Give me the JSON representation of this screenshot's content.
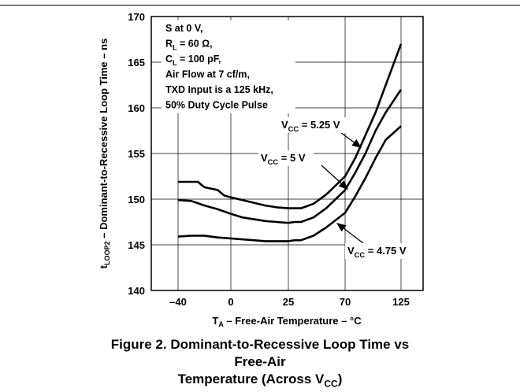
{
  "caption": {
    "line1": "Figure 2. Dominant-to-Recessive Loop Time vs Free-Air",
    "line2_pre": "Temperature (Across V",
    "line2_sub": "CC",
    "line2_post": ")"
  },
  "chart_data": {
    "type": "line",
    "xlabel": {
      "pre": "T",
      "sub": "A",
      "post": " – Free-Air Temperature – °C"
    },
    "ylabel": {
      "pre": "t",
      "sub": "LOOP2",
      "post": " – Dominant-to-Recessive Loop Time – ns"
    },
    "x_ticks": [
      -40,
      0,
      25,
      70,
      125
    ],
    "y_ticks": [
      140,
      145,
      150,
      155,
      160,
      165,
      170
    ],
    "ylim": [
      140,
      170
    ],
    "grid": true,
    "conditions": [
      {
        "pre": "S at 0 V,"
      },
      {
        "pre": "R",
        "sub": "L",
        "post": " = 60 Ω,"
      },
      {
        "pre": "C",
        "sub": "L",
        "post": " = 100 pF,"
      },
      {
        "pre": "Air Flow at 7 cf/m,"
      },
      {
        "pre": "TXD Input is a 125 kHz,"
      },
      {
        "pre": "50% Duty Cycle Pulse"
      }
    ],
    "series": [
      {
        "name": "V_CC = 5.25 V",
        "label_pre": "V",
        "label_sub": "CC",
        "label_post": " = 5.25 V",
        "x": [
          -40,
          -25,
          -20,
          -10,
          -5,
          0,
          10,
          15,
          20,
          25,
          30,
          35,
          45,
          55,
          70,
          80,
          90,
          100,
          110,
          125
        ],
        "y": [
          151.9,
          151.9,
          151.3,
          151.0,
          150.4,
          150.2,
          149.6,
          149.3,
          149.1,
          149.0,
          149.0,
          149.0,
          149.5,
          150.5,
          152.5,
          154.5,
          157.0,
          159.5,
          162.5,
          167.0
        ]
      },
      {
        "name": "V_CC = 5 V",
        "label_pre": "V",
        "label_sub": "CC",
        "label_post": " = 5 V",
        "x": [
          -40,
          -30,
          -20,
          -10,
          0,
          5,
          15,
          20,
          25,
          30,
          35,
          45,
          55,
          70,
          80,
          90,
          100,
          110,
          125
        ],
        "y": [
          149.9,
          149.8,
          149.3,
          148.9,
          148.4,
          148.0,
          147.6,
          147.5,
          147.4,
          147.5,
          147.5,
          148.0,
          149.0,
          151.0,
          152.9,
          155.0,
          157.5,
          159.5,
          162.0
        ]
      },
      {
        "name": "V_CC = 4.75 V",
        "label_pre": "V",
        "label_sub": "CC",
        "label_post": " = 4.75 V",
        "x": [
          -40,
          -30,
          -20,
          -10,
          0,
          10,
          15,
          20,
          25,
          30,
          35,
          45,
          55,
          70,
          80,
          90,
          100,
          110,
          125
        ],
        "y": [
          145.9,
          146.0,
          146.0,
          145.8,
          145.7,
          145.5,
          145.4,
          145.4,
          145.4,
          145.5,
          145.5,
          146.0,
          146.9,
          148.5,
          150.3,
          152.3,
          154.5,
          156.5,
          158.0
        ]
      }
    ]
  }
}
